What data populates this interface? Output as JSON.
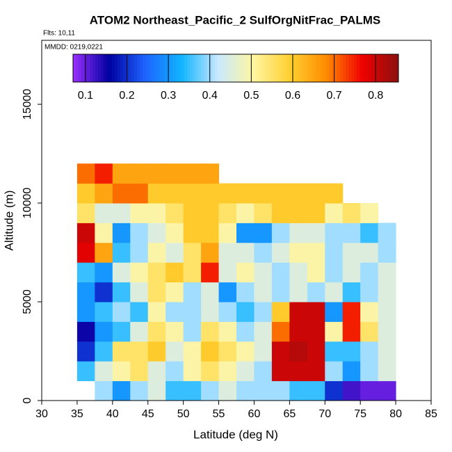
{
  "chart_data": {
    "type": "heatmap",
    "title": "ATOM2 Northeast_Pacific_2 SulfOrgNitFrac_PALMS",
    "subtitle": "Flts: 10,11",
    "annotation": "MMDD: 0219,0221",
    "x_label": "Latitude (deg N)",
    "y_label": "Altitude (m)",
    "xlim": [
      30,
      85
    ],
    "ylim": [
      0,
      18240
    ],
    "xticks": [
      30,
      35,
      40,
      45,
      50,
      55,
      60,
      65,
      70,
      75,
      80,
      85
    ],
    "yticks": [
      0,
      5000,
      10000,
      15000
    ],
    "latitude_bins": [
      35,
      37.5,
      40,
      42.5,
      45,
      47.5,
      50,
      52.5,
      55,
      57.5,
      60,
      62.5,
      65,
      67.5,
      70,
      72.5,
      75,
      77.5,
      80
    ],
    "altitude_bins": [
      0,
      1000,
      2000,
      3000,
      4000,
      5000,
      6000,
      7000,
      8000,
      9000,
      10000,
      11000,
      12000
    ],
    "values": [
      [
        null,
        0.4,
        0.3,
        0.4,
        0.45,
        0.35,
        0.35,
        0.4,
        0.45,
        0.4,
        0.4,
        0.4,
        0.35,
        0.35,
        0.2,
        0.12,
        0.1,
        0.1
      ],
      [
        0.35,
        0.45,
        0.5,
        0.55,
        0.45,
        0.4,
        0.5,
        0.55,
        0.5,
        0.45,
        0.4,
        0.8,
        0.8,
        0.8,
        0.4,
        0.3,
        0.4,
        0.45
      ],
      [
        0.2,
        0.35,
        0.55,
        0.55,
        0.6,
        0.45,
        0.5,
        0.6,
        0.55,
        0.5,
        0.45,
        0.8,
        0.82,
        0.8,
        0.35,
        0.35,
        0.4,
        0.45
      ],
      [
        0.15,
        0.3,
        0.35,
        0.45,
        0.55,
        0.5,
        0.4,
        0.55,
        0.5,
        0.4,
        0.45,
        0.7,
        0.8,
        0.8,
        0.5,
        0.75,
        0.55,
        0.45
      ],
      [
        0.3,
        0.35,
        0.4,
        0.35,
        0.5,
        0.4,
        0.4,
        0.45,
        0.4,
        0.35,
        0.4,
        0.6,
        0.8,
        0.8,
        0.3,
        0.75,
        0.5,
        0.45
      ],
      [
        0.3,
        0.2,
        0.35,
        0.45,
        0.55,
        0.5,
        0.4,
        0.45,
        0.3,
        0.4,
        0.45,
        0.4,
        0.45,
        0.4,
        0.45,
        0.35,
        0.4,
        0.45
      ],
      [
        0.35,
        0.3,
        0.45,
        0.5,
        0.55,
        0.6,
        0.55,
        0.75,
        0.45,
        0.5,
        0.45,
        0.4,
        0.45,
        0.5,
        0.4,
        0.45,
        0.4,
        0.45
      ],
      [
        0.78,
        0.65,
        0.35,
        0.4,
        0.5,
        0.45,
        0.55,
        0.65,
        0.45,
        0.45,
        0.4,
        0.45,
        0.5,
        0.5,
        0.4,
        0.45,
        0.45,
        0.4
      ],
      [
        0.8,
        0.5,
        0.3,
        0.4,
        0.45,
        0.5,
        0.6,
        0.6,
        0.5,
        0.3,
        0.3,
        0.4,
        0.45,
        0.45,
        0.4,
        0.4,
        0.35,
        0.4
      ],
      [
        0.55,
        0.45,
        0.45,
        0.5,
        0.5,
        0.55,
        0.6,
        0.6,
        0.55,
        0.5,
        0.55,
        0.6,
        0.6,
        0.6,
        0.5,
        0.55,
        0.5,
        null
      ],
      [
        0.6,
        0.65,
        0.7,
        0.7,
        0.6,
        0.6,
        0.6,
        0.6,
        0.6,
        0.6,
        0.6,
        0.6,
        0.6,
        0.6,
        0.6,
        null,
        null,
        null
      ],
      [
        0.7,
        0.75,
        0.65,
        0.65,
        0.65,
        0.65,
        0.65,
        0.65,
        null,
        null,
        null,
        null,
        null,
        null,
        null,
        null,
        null,
        null
      ]
    ],
    "clim": [
      0.07,
      0.855
    ],
    "cticks": [
      0.1,
      0.2,
      0.3,
      0.4,
      0.5,
      0.6,
      0.7,
      0.8
    ],
    "colorscale": [
      "#9b30ff",
      "#0000a0",
      "#1e64ff",
      "#10b4ff",
      "#c8e8ff",
      "#fff5a0",
      "#ffd030",
      "#ff8c00",
      "#f00000",
      "#8b1010"
    ]
  }
}
